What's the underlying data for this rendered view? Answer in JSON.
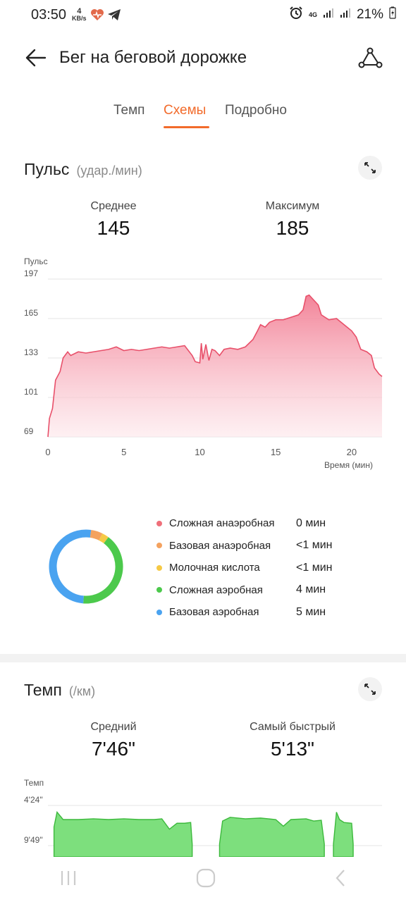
{
  "status_bar": {
    "time": "03:50",
    "net_speed_value": "4",
    "net_speed_unit": "KB/s",
    "network": "4G",
    "battery": "21%"
  },
  "header": {
    "title": "Бег на беговой дорожке"
  },
  "tabs": [
    {
      "label": "Темп",
      "active": false
    },
    {
      "label": "Схемы",
      "active": true
    },
    {
      "label": "Подробно",
      "active": false
    }
  ],
  "pulse": {
    "title": "Пульс",
    "unit": "(удар./мин)",
    "avg_label": "Среднее",
    "avg_value": "145",
    "max_label": "Максимум",
    "max_value": "185",
    "y_axis_title": "Пульс",
    "x_axis_title": "Время (мин)"
  },
  "zones": [
    {
      "name": "Сложная анаэробная",
      "value": "0 мин",
      "color": "#ef6f7a"
    },
    {
      "name": "Базовая анаэробная",
      "value": "<1 мин",
      "color": "#f4a25f"
    },
    {
      "name": "Молочная кислота",
      "value": "<1 мин",
      "color": "#f6c945"
    },
    {
      "name": "Сложная аэробная",
      "value": "4 мин",
      "color": "#4cc94c"
    },
    {
      "name": "Базовая аэробная",
      "value": "5 мин",
      "color": "#4aa3f0"
    }
  ],
  "pace": {
    "title": "Темп",
    "unit": "(/км)",
    "avg_label": "Средний",
    "avg_value": "7'46\"",
    "fast_label": "Самый быстрый",
    "fast_value": "5'13\"",
    "y_axis_title": "Темп"
  },
  "chart_data": [
    {
      "type": "area",
      "ylabel": "Пульс",
      "xlabel": "Время (мин)",
      "ylim": [
        69,
        197
      ],
      "xlim": [
        0,
        22
      ],
      "y_ticks": [
        "197",
        "165",
        "133",
        "101",
        "69"
      ],
      "x_ticks": [
        "0",
        "5",
        "10",
        "15",
        "20"
      ],
      "color": "#e8506a",
      "series": [
        {
          "x": [
            0,
            0.1,
            0.3,
            0.5,
            0.8,
            1.0,
            1.3,
            1.5,
            2.0,
            2.5,
            3.0,
            3.5,
            4.0,
            4.5,
            5.0,
            5.5,
            6.0,
            6.5,
            7.0,
            7.5,
            8.0,
            8.5,
            9.0,
            9.5,
            9.7,
            10.0,
            10.1,
            10.2,
            10.4,
            10.6,
            10.8,
            11.0,
            11.3,
            11.6,
            12.0,
            12.5,
            13.0,
            13.5,
            13.8,
            14.0,
            14.3,
            14.6,
            15.0,
            15.5,
            16.0,
            16.5,
            16.8,
            17.0,
            17.2,
            17.5,
            17.8,
            18.0,
            18.5,
            19.0,
            19.5,
            20.0,
            20.3,
            20.6,
            21.0,
            21.3,
            21.5,
            21.8,
            22.0
          ],
          "values": [
            69,
            84,
            92,
            115,
            122,
            133,
            138,
            135,
            138,
            137,
            138,
            139,
            140,
            142,
            139,
            140,
            139,
            140,
            141,
            142,
            141,
            142,
            143,
            135,
            130,
            129,
            145,
            132,
            144,
            131,
            140,
            139,
            135,
            140,
            141,
            140,
            142,
            148,
            155,
            160,
            158,
            162,
            164,
            164,
            166,
            168,
            172,
            183,
            184,
            180,
            176,
            168,
            164,
            165,
            160,
            155,
            150,
            140,
            138,
            135,
            125,
            120,
            118
          ]
        }
      ]
    },
    {
      "type": "pie",
      "categories": [
        "Сложная анаэробная",
        "Базовая анаэробная",
        "Молочная кислота",
        "Сложная аэробная",
        "Базовая аэробная"
      ],
      "values": [
        0,
        0.5,
        0.3,
        4,
        5
      ],
      "colors": [
        "#ef6f7a",
        "#f4a25f",
        "#f6c945",
        "#4cc94c",
        "#4aa3f0"
      ]
    },
    {
      "type": "area",
      "ylabel": "Темп",
      "y_ticks": [
        "4'24\"",
        "9'49\""
      ],
      "xlim": [
        0,
        22
      ],
      "color": "#4cc94c",
      "segments": [
        {
          "x": [
            0.4,
            0.6,
            1.0,
            2.0,
            3.0,
            4.0,
            5.0,
            6.0,
            7.0,
            7.5,
            8.0,
            8.5,
            9.0,
            9.4,
            9.5
          ],
          "values": [
            7.3,
            5.3,
            6.3,
            6.3,
            6.2,
            6.3,
            6.2,
            6.3,
            6.3,
            6.2,
            7.6,
            6.8,
            6.8,
            6.7,
            9.6
          ]
        },
        {
          "x": [
            11.3,
            11.5,
            12.0,
            13.0,
            14.0,
            15.0,
            15.5,
            16.0,
            17.0,
            17.5,
            18.0,
            18.2
          ],
          "values": [
            9.6,
            6.5,
            6.0,
            6.2,
            6.1,
            6.3,
            7.2,
            6.3,
            6.2,
            6.5,
            6.4,
            9.6
          ]
        },
        {
          "x": [
            18.8,
            19.0,
            19.2,
            19.5,
            20.0,
            20.1
          ],
          "values": [
            9.6,
            5.3,
            6.3,
            6.7,
            6.8,
            9.6
          ]
        }
      ]
    }
  ]
}
